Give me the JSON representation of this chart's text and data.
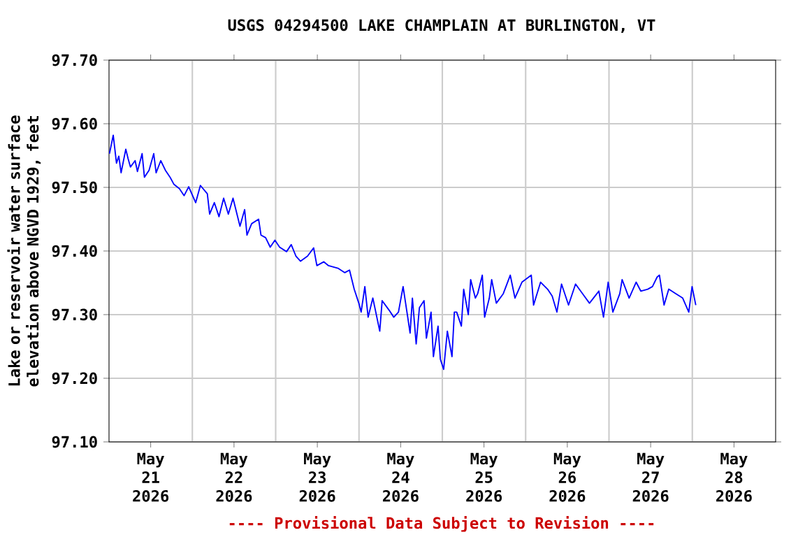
{
  "chart_data": {
    "type": "line",
    "title": "USGS 04294500 LAKE CHAMPLAIN AT BURLINGTON, VT",
    "ylabel": "Lake or reservoir water surface elevation above NGVD 1929, feet",
    "annotations": [
      "---- Provisional Data Subject to Revision ----"
    ],
    "xlim": [
      "2026-05-21T00:00",
      "2026-05-29T00:00"
    ],
    "xticks": [
      {
        "value": "2026-05-21T12:00",
        "label": "May 21 2026"
      },
      {
        "value": "2026-05-22T12:00",
        "label": "May 22 2026"
      },
      {
        "value": "2026-05-23T12:00",
        "label": "May 23 2026"
      },
      {
        "value": "2026-05-24T12:00",
        "label": "May 24 2026"
      },
      {
        "value": "2026-05-25T12:00",
        "label": "May 25 2026"
      },
      {
        "value": "2026-05-26T12:00",
        "label": "May 26 2026"
      },
      {
        "value": "2026-05-27T12:00",
        "label": "May 27 2026"
      },
      {
        "value": "2026-05-28T12:00",
        "label": "May 28 2026"
      },
      {
        "value": "2026-05-22T00:00",
        "label": null
      },
      {
        "value": "2026-05-23T00:00",
        "label": null
      },
      {
        "value": "2026-05-24T00:00",
        "label": null
      },
      {
        "value": "2026-05-25T00:00",
        "label": null
      },
      {
        "value": "2026-05-26T00:00",
        "label": null
      },
      {
        "value": "2026-05-27T00:00",
        "label": null
      },
      {
        "value": "2026-05-28T00:00",
        "label": null
      }
    ],
    "ylim": [
      97.1,
      97.7
    ],
    "yticks": [
      {
        "value": 97.1,
        "label": "97.10"
      },
      {
        "value": 97.2,
        "label": "97.20"
      },
      {
        "value": 97.3,
        "label": "97.30"
      },
      {
        "value": 97.4,
        "label": "97.40"
      },
      {
        "value": 97.5,
        "label": "97.50"
      },
      {
        "value": 97.6,
        "label": "97.60"
      },
      {
        "value": 97.7,
        "label": "97.70"
      }
    ],
    "grid": true,
    "series": [
      {
        "color": "#0000ff",
        "x": [
          "2026-05-21T00:08",
          "2026-05-21T01:13",
          "2026-05-21T02:09",
          "2026-05-21T02:49",
          "2026-05-21T03:29",
          "2026-05-21T04:50",
          "2026-05-21T05:30",
          "2026-05-21T06:10",
          "2026-05-21T07:31",
          "2026-05-21T08:11",
          "2026-05-21T09:32",
          "2026-05-21T10:12",
          "2026-05-21T11:32",
          "2026-05-21T12:53",
          "2026-05-21T13:34",
          "2026-05-21T14:54",
          "2026-05-21T16:14",
          "2026-05-21T17:35",
          "2026-05-21T18:40",
          "2026-05-21T20:16",
          "2026-05-21T21:37",
          "2026-05-21T22:57",
          "2026-05-22T00:58",
          "2026-05-22T02:19",
          "2026-05-22T04:19",
          "2026-05-22T04:59",
          "2026-05-22T06:20",
          "2026-05-22T07:41",
          "2026-05-22T09:01",
          "2026-05-22T10:22",
          "2026-05-22T11:43",
          "2026-05-22T13:43",
          "2026-05-22T15:04",
          "2026-05-22T15:44",
          "2026-05-22T17:05",
          "2026-05-22T19:05",
          "2026-05-22T19:46",
          "2026-05-22T21:06",
          "2026-05-22T22:26",
          "2026-05-22T23:47",
          "2026-05-23T01:08",
          "2026-05-23T03:08",
          "2026-05-23T04:29",
          "2026-05-23T05:50",
          "2026-05-23T07:10",
          "2026-05-23T09:11",
          "2026-05-23T10:56",
          "2026-05-23T11:52",
          "2026-05-23T13:53",
          "2026-05-23T15:13",
          "2026-05-23T17:55",
          "2026-05-23T19:55",
          "2026-05-23T21:16",
          "2026-05-23T22:37",
          "2026-05-23T23:57",
          "2026-05-24T00:37",
          "2026-05-24T01:41",
          "2026-05-24T02:38",
          "2026-05-24T03:59",
          "2026-05-24T05:59",
          "2026-05-24T06:40",
          "2026-05-24T08:40",
          "2026-05-24T10:01",
          "2026-05-24T11:22",
          "2026-05-24T12:42",
          "2026-05-24T14:02",
          "2026-05-24T14:43",
          "2026-05-24T15:23",
          "2026-05-24T16:28",
          "2026-05-24T17:24",
          "2026-05-24T18:44",
          "2026-05-24T19:25",
          "2026-05-24T20:45",
          "2026-05-24T21:26",
          "2026-05-24T22:46",
          "2026-05-24T23:26",
          "2026-05-25T00:23",
          "2026-05-25T01:27",
          "2026-05-25T02:47",
          "2026-05-25T03:28",
          "2026-05-25T04:08",
          "2026-05-25T05:29",
          "2026-05-25T06:09",
          "2026-05-25T07:29",
          "2026-05-25T08:10",
          "2026-05-25T09:31",
          "2026-05-25T10:11",
          "2026-05-25T11:31",
          "2026-05-25T12:11",
          "2026-05-25T13:32",
          "2026-05-25T14:13",
          "2026-05-25T15:33",
          "2026-05-25T17:34",
          "2026-05-25T19:34",
          "2026-05-25T20:55",
          "2026-05-25T22:56",
          "2026-05-26T01:37",
          "2026-05-26T02:17",
          "2026-05-26T04:18",
          "2026-05-26T06:19",
          "2026-05-26T07:39",
          "2026-05-26T09:00",
          "2026-05-26T10:20",
          "2026-05-26T12:21",
          "2026-05-26T14:22",
          "2026-05-26T16:23",
          "2026-05-26T18:23",
          "2026-05-26T21:05",
          "2026-05-26T22:25",
          "2026-05-26T23:46",
          "2026-05-27T01:07",
          "2026-05-27T03:07",
          "2026-05-27T03:47",
          "2026-05-27T05:48",
          "2026-05-27T07:49",
          "2026-05-27T09:10",
          "2026-05-27T11:10",
          "2026-05-27T12:31",
          "2026-05-27T13:52",
          "2026-05-27T14:32",
          "2026-05-27T15:52",
          "2026-05-27T17:13",
          "2026-05-27T19:14",
          "2026-05-27T21:14",
          "2026-05-27T22:59",
          "2026-05-27T23:56",
          "2026-05-28T01:00"
        ],
        "values": [
          97.553,
          97.582,
          97.538,
          97.549,
          97.523,
          97.56,
          97.545,
          97.532,
          97.542,
          97.525,
          97.553,
          97.516,
          97.527,
          97.553,
          97.523,
          97.542,
          97.527,
          97.516,
          97.505,
          97.498,
          97.487,
          97.501,
          97.476,
          97.503,
          97.49,
          97.458,
          97.476,
          97.454,
          97.483,
          97.458,
          97.483,
          97.439,
          97.465,
          97.425,
          97.443,
          97.45,
          97.425,
          97.421,
          97.406,
          97.417,
          97.406,
          97.399,
          97.41,
          97.392,
          97.384,
          97.392,
          97.405,
          97.377,
          97.383,
          97.377,
          97.373,
          97.366,
          97.37,
          97.34,
          97.318,
          97.304,
          97.344,
          97.296,
          97.326,
          97.274,
          97.322,
          97.307,
          97.296,
          97.304,
          97.344,
          97.296,
          97.271,
          97.326,
          97.254,
          97.311,
          97.322,
          97.263,
          97.304,
          97.234,
          97.282,
          97.23,
          97.214,
          97.274,
          97.234,
          97.304,
          97.304,
          97.282,
          97.34,
          97.3,
          97.355,
          97.326,
          97.333,
          97.362,
          97.296,
          97.326,
          97.355,
          97.318,
          97.333,
          97.362,
          97.326,
          97.351,
          97.362,
          97.315,
          97.351,
          97.34,
          97.329,
          97.304,
          97.348,
          97.315,
          97.348,
          97.333,
          97.318,
          97.337,
          97.296,
          97.351,
          97.304,
          97.333,
          97.355,
          97.326,
          97.351,
          97.337,
          97.34,
          97.344,
          97.359,
          97.362,
          97.315,
          97.34,
          97.333,
          97.326,
          97.304,
          97.344,
          97.315
        ]
      }
    ]
  }
}
